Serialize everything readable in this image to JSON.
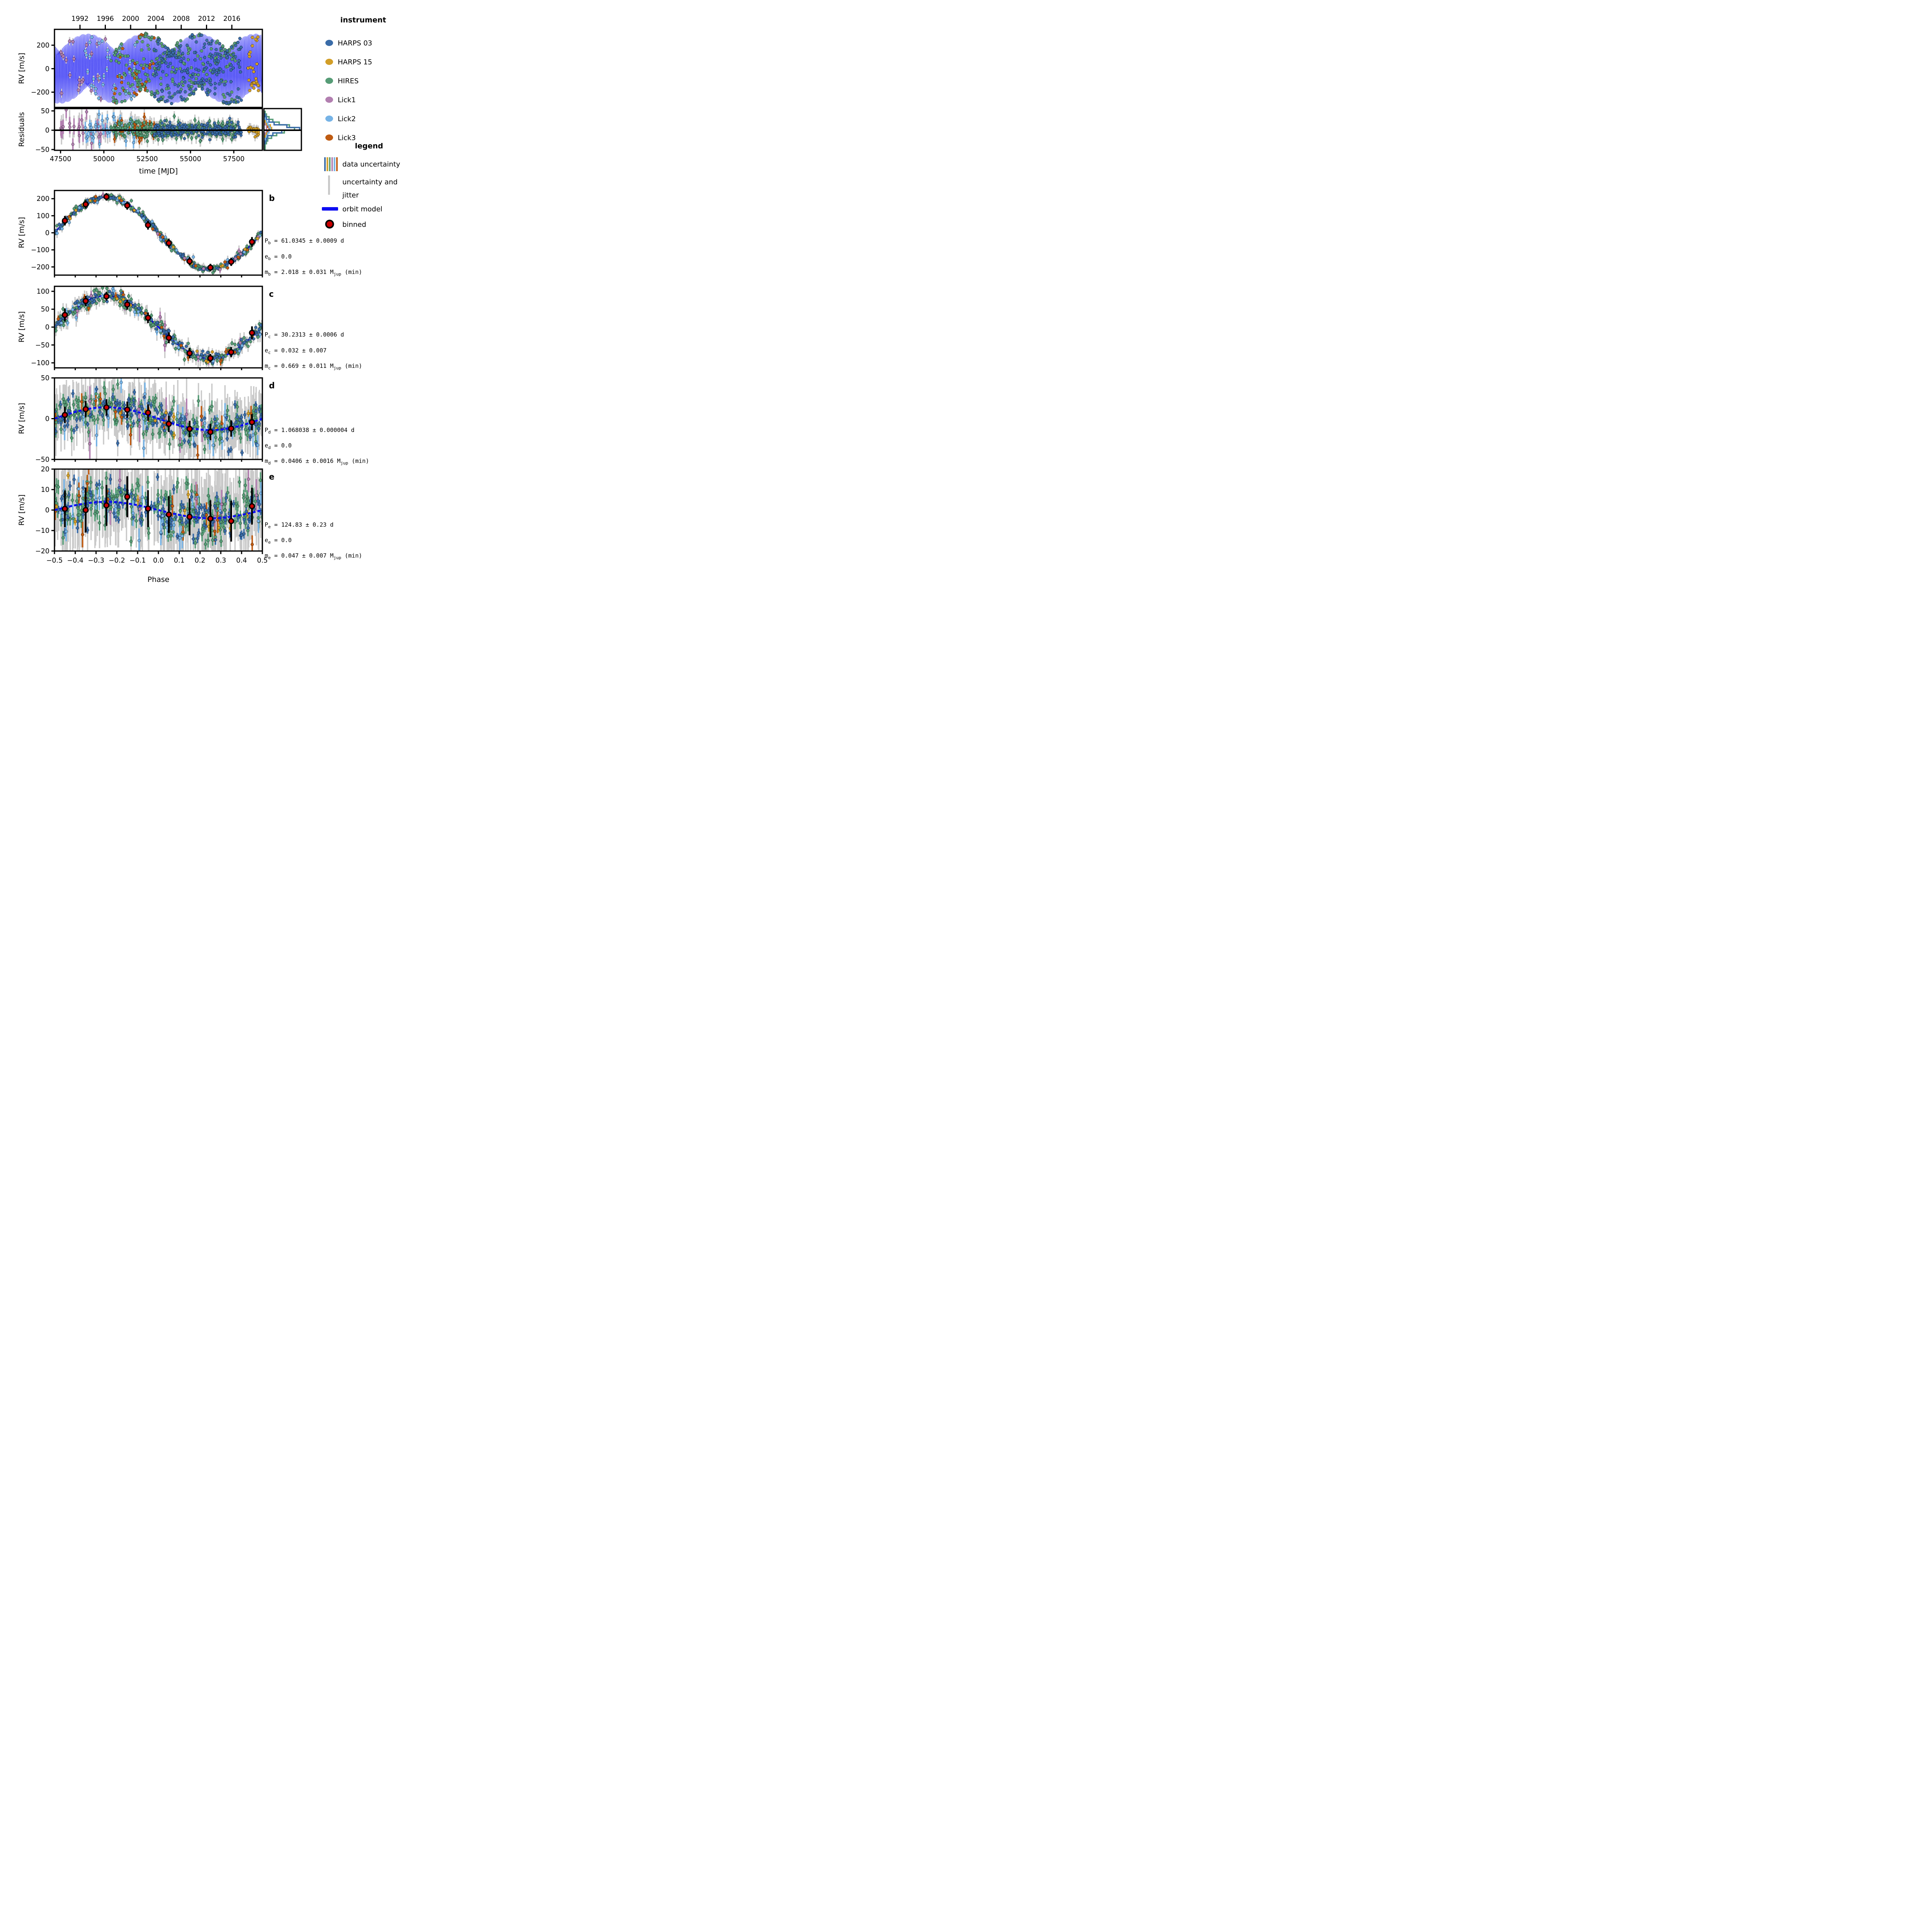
{
  "instrument_legend": {
    "title": "instrument",
    "items": [
      {
        "label": "HARPS 03",
        "color": "#3a6ca8"
      },
      {
        "label": "HARPS 15",
        "color": "#d29e27"
      },
      {
        "label": "HIRES",
        "color": "#569c76"
      },
      {
        "label": "Lick1",
        "color": "#b27fb0"
      },
      {
        "label": "Lick2",
        "color": "#76b3e6"
      },
      {
        "label": "Lick3",
        "color": "#bf5b12"
      }
    ]
  },
  "style_legend": {
    "title": "legend",
    "data_uncertainty_label": "data uncertainty",
    "jitter_label_line1": "uncertainty and",
    "jitter_label_line2": "jitter",
    "orbit_label": "orbit model",
    "binned_label": "binned",
    "jitter_color": "#c9c9c9",
    "orbit_color": "#0d0df2",
    "binned_fill": "#c90000"
  },
  "phase_axis": {
    "xlabel": "Phase",
    "ticks": [
      {
        "v": -0.5,
        "label": "−0.5"
      },
      {
        "v": -0.4,
        "label": "−0.4"
      },
      {
        "v": -0.3,
        "label": "−0.3"
      },
      {
        "v": -0.2,
        "label": "−0.2"
      },
      {
        "v": -0.1,
        "label": "−0.1"
      },
      {
        "v": 0.0,
        "label": "0.0"
      },
      {
        "v": 0.1,
        "label": "0.1"
      },
      {
        "v": 0.2,
        "label": "0.2"
      },
      {
        "v": 0.3,
        "label": "0.3"
      },
      {
        "v": 0.4,
        "label": "0.4"
      },
      {
        "v": 0.5,
        "label": "0.5"
      }
    ]
  },
  "chart_data": [
    {
      "id": "timeseries",
      "type": "scatter",
      "ylabel": "RV [m/s]",
      "ylim": [
        -330,
        335
      ],
      "yticks": [
        {
          "v": 200,
          "label": "200"
        },
        {
          "v": 0,
          "label": "0"
        },
        {
          "v": -200,
          "label": "−200"
        }
      ],
      "xlim": [
        47150,
        59150
      ],
      "top_axis_years": [
        {
          "mjd": 48622,
          "label": "1992"
        },
        {
          "mjd": 50083,
          "label": "1996"
        },
        {
          "mjd": 51544,
          "label": "2000"
        },
        {
          "mjd": 53005,
          "label": "2004"
        },
        {
          "mjd": 54466,
          "label": "2008"
        },
        {
          "mjd": 55927,
          "label": "2012"
        },
        {
          "mjd": 57388,
          "label": "2016"
        }
      ],
      "model": {
        "tref": 47150,
        "components": [
          {
            "K": 211,
            "P": 61.0345,
            "phi": 0.0
          },
          {
            "K": 88,
            "P": 30.2313,
            "phi": 1.0
          }
        ]
      },
      "scatter": [
        {
          "instrument": "Lick1",
          "n": 22,
          "t0": 47350,
          "t1": 50100,
          "noise": 20,
          "err": 18,
          "jitter": 30
        },
        {
          "instrument": "Lick2",
          "n": 40,
          "t0": 48900,
          "t1": 51900,
          "noise": 14,
          "err": 12,
          "jitter": 22
        },
        {
          "instrument": "Lick3",
          "n": 40,
          "t0": 50600,
          "t1": 52950,
          "noise": 12,
          "err": 9,
          "jitter": 17
        },
        {
          "instrument": "HIRES",
          "n": 255,
          "t0": 50400,
          "t1": 57650,
          "noise": 10,
          "err": 6,
          "jitter": 13
        },
        {
          "instrument": "HARPS 03",
          "n": 200,
          "t0": 52900,
          "t1": 57950,
          "noise": 8,
          "err": 3,
          "jitter": 9
        },
        {
          "instrument": "HARPS 15",
          "n": 28,
          "t0": 58250,
          "t1": 58950,
          "noise": 8,
          "err": 3,
          "jitter": 9
        }
      ]
    },
    {
      "id": "residuals",
      "type": "scatter",
      "ylabel": "Residuals",
      "ylim": [
        -52,
        56
      ],
      "yticks": [
        {
          "v": 50,
          "label": "50"
        },
        {
          "v": 0,
          "label": "0"
        },
        {
          "v": -50,
          "label": "−50"
        }
      ],
      "xlabel": "time [MJD]",
      "xticks": [
        {
          "v": 47500,
          "label": "47500"
        },
        {
          "v": 50000,
          "label": "50000"
        },
        {
          "v": 52500,
          "label": "52500"
        },
        {
          "v": 55000,
          "label": "55000"
        },
        {
          "v": 57500,
          "label": "57500"
        }
      ],
      "zero_line": true,
      "scatter_sigma": {
        "Lick1": 24,
        "Lick2": 20,
        "Lick3": 16,
        "HIRES": 11,
        "HARPS 03": 9,
        "HARPS 15": 6
      },
      "histogram": {
        "bin_edges": [
          -49,
          -42,
          -35,
          -28,
          -21,
          -14,
          -7,
          0,
          7,
          14,
          21,
          28,
          35,
          42,
          49
        ],
        "series": [
          {
            "instrument": "Lick1",
            "counts": [
              0,
              0,
              1,
              1,
              1,
              1,
              2,
              2,
              2,
              1,
              1,
              1,
              0,
              0
            ]
          },
          {
            "instrument": "Lick3",
            "counts": [
              0,
              0,
              1,
              1,
              1,
              2,
              3,
              4,
              3,
              2,
              1,
              1,
              0,
              0
            ]
          },
          {
            "instrument": "HARPS 15",
            "counts": [
              0,
              0,
              0,
              0,
              1,
              2,
              4,
              6,
              5,
              2,
              1,
              0,
              0,
              0
            ]
          },
          {
            "instrument": "Lick2",
            "counts": [
              0,
              1,
              1,
              1,
              2,
              3,
              4,
              5,
              4,
              3,
              2,
              1,
              1,
              0
            ]
          },
          {
            "instrument": "HIRES",
            "counts": [
              1,
              1,
              2,
              3,
              6,
              10,
              16,
              24,
              20,
              12,
              7,
              4,
              2,
              1
            ]
          },
          {
            "instrument": "HARPS 03",
            "counts": [
              0,
              0,
              1,
              2,
              3,
              7,
              14,
              28,
              18,
              8,
              4,
              2,
              1,
              0
            ]
          }
        ]
      }
    },
    {
      "id": "phase_b",
      "type": "scatter",
      "letter": "b",
      "ylabel": "RV [m/s]",
      "ylim": [
        -248,
        248
      ],
      "yticks": [
        {
          "v": 200,
          "label": "200"
        },
        {
          "v": 100,
          "label": "100"
        },
        {
          "v": 0,
          "label": "0"
        },
        {
          "v": -100,
          "label": "−100"
        },
        {
          "v": -200,
          "label": "−200"
        }
      ],
      "model": {
        "K": 211,
        "dashed": false
      },
      "binned": {
        "x": [
          -0.45,
          -0.35,
          -0.25,
          -0.15,
          -0.05,
          0.05,
          0.15,
          0.25,
          0.35,
          0.45
        ],
        "y": [
          71,
          167,
          211,
          160,
          45,
          -60,
          -167,
          -204,
          -170,
          -53
        ],
        "yerr": [
          28,
          24,
          22,
          24,
          26,
          26,
          24,
          22,
          24,
          28
        ]
      },
      "annotations": [
        [
          {
            "t": "P"
          },
          {
            "t": "b",
            "sub": true
          },
          {
            "t": " = 61.0345 ± 0.0009 d"
          }
        ],
        [
          {
            "t": "e"
          },
          {
            "t": "b",
            "sub": true
          },
          {
            "t": " = 0.0"
          }
        ],
        [
          {
            "t": "m"
          },
          {
            "t": "b",
            "sub": true
          },
          {
            "t": " = 2.018 ± 0.031 M"
          },
          {
            "t": "jup",
            "sub": true
          },
          {
            "t": " (min)"
          }
        ]
      ],
      "scatter": [
        {
          "instrument": "HIRES",
          "n": 205,
          "noise": 11,
          "err": 5,
          "jitter": 14
        },
        {
          "instrument": "HARPS 03",
          "n": 150,
          "noise": 8,
          "err": 3,
          "jitter": 10
        },
        {
          "instrument": "Lick2",
          "n": 26,
          "noise": 14,
          "err": 11,
          "jitter": 20
        },
        {
          "instrument": "Lick3",
          "n": 16,
          "noise": 12,
          "err": 9,
          "jitter": 16
        },
        {
          "instrument": "Lick1",
          "n": 10,
          "noise": 18,
          "err": 16,
          "jitter": 28
        },
        {
          "instrument": "HARPS 15",
          "n": 12,
          "noise": 8,
          "err": 3,
          "jitter": 10
        }
      ]
    },
    {
      "id": "phase_c",
      "type": "scatter",
      "letter": "c",
      "ylabel": "RV [m/s]",
      "ylim": [
        -114,
        114
      ],
      "yticks": [
        {
          "v": 100,
          "label": "100"
        },
        {
          "v": 50,
          "label": "50"
        },
        {
          "v": 0,
          "label": "0"
        },
        {
          "v": -50,
          "label": "−50"
        },
        {
          "v": -100,
          "label": "−100"
        }
      ],
      "model": {
        "K": 88,
        "dashed": false
      },
      "binned": {
        "x": [
          -0.45,
          -0.35,
          -0.25,
          -0.15,
          -0.05,
          0.05,
          0.15,
          0.25,
          0.35,
          0.45
        ],
        "y": [
          34,
          73,
          86,
          63,
          26,
          -30,
          -73,
          -87,
          -70,
          -16
        ],
        "yerr": [
          18,
          14,
          12,
          14,
          15,
          15,
          14,
          12,
          14,
          18
        ]
      },
      "annotations": [
        [
          {
            "t": "P"
          },
          {
            "t": "c",
            "sub": true
          },
          {
            "t": " = 30.2313 ± 0.0006 d"
          }
        ],
        [
          {
            "t": "e"
          },
          {
            "t": "c",
            "sub": true
          },
          {
            "t": " = 0.032 ± 0.007"
          }
        ],
        [
          {
            "t": "m"
          },
          {
            "t": "c",
            "sub": true
          },
          {
            "t": " = 0.669 ± 0.011 M"
          },
          {
            "t": "jup",
            "sub": true
          },
          {
            "t": " (min)"
          }
        ]
      ],
      "scatter": [
        {
          "instrument": "HIRES",
          "n": 205,
          "noise": 10,
          "err": 5,
          "jitter": 13
        },
        {
          "instrument": "HARPS 03",
          "n": 150,
          "noise": 8,
          "err": 3,
          "jitter": 9
        },
        {
          "instrument": "Lick2",
          "n": 26,
          "noise": 13,
          "err": 10,
          "jitter": 19
        },
        {
          "instrument": "Lick3",
          "n": 16,
          "noise": 12,
          "err": 9,
          "jitter": 15
        },
        {
          "instrument": "Lick1",
          "n": 10,
          "noise": 16,
          "err": 14,
          "jitter": 26
        },
        {
          "instrument": "HARPS 15",
          "n": 12,
          "noise": 8,
          "err": 3,
          "jitter": 9
        }
      ]
    },
    {
      "id": "phase_d",
      "type": "scatter",
      "letter": "d",
      "ylabel": "RV [m/s]",
      "ylim": [
        -50,
        50
      ],
      "yticks": [
        {
          "v": 50,
          "label": "50"
        },
        {
          "v": 0,
          "label": "0"
        },
        {
          "v": -50,
          "label": "−50"
        }
      ],
      "model": {
        "K": 14,
        "dashed": true
      },
      "binned": {
        "x": [
          -0.45,
          -0.35,
          -0.25,
          -0.15,
          -0.05,
          0.05,
          0.15,
          0.25,
          0.35,
          0.45
        ],
        "y": [
          4.6,
          11.6,
          13.8,
          11.0,
          7.4,
          -6.4,
          -12.6,
          -16.3,
          -12.1,
          -4.3
        ],
        "yerr": [
          10,
          10,
          10,
          10,
          10,
          10,
          10,
          10,
          10,
          10
        ]
      },
      "annotations": [
        [
          {
            "t": "P"
          },
          {
            "t": "d",
            "sub": true
          },
          {
            "t": " = 1.068038 ± 0.000004 d"
          }
        ],
        [
          {
            "t": "e"
          },
          {
            "t": "d",
            "sub": true
          },
          {
            "t": " = 0.0"
          }
        ],
        [
          {
            "t": "m"
          },
          {
            "t": "d",
            "sub": true
          },
          {
            "t": " = 0.0406 ± 0.0016 M"
          },
          {
            "t": "jup",
            "sub": true
          },
          {
            "t": " (min)"
          }
        ]
      ],
      "scatter": [
        {
          "instrument": "HIRES",
          "n": 200,
          "noise": 13,
          "err": 6,
          "jitter": 22
        },
        {
          "instrument": "HARPS 03",
          "n": 150,
          "noise": 11,
          "err": 4,
          "jitter": 18
        },
        {
          "instrument": "Lick2",
          "n": 24,
          "noise": 16,
          "err": 12,
          "jitter": 30
        },
        {
          "instrument": "Lick3",
          "n": 14,
          "noise": 15,
          "err": 10,
          "jitter": 26
        },
        {
          "instrument": "Lick1",
          "n": 8,
          "noise": 18,
          "err": 15,
          "jitter": 34
        },
        {
          "instrument": "HARPS 15",
          "n": 10,
          "noise": 10,
          "err": 4,
          "jitter": 16
        }
      ]
    },
    {
      "id": "phase_e",
      "type": "scatter",
      "letter": "e",
      "ylabel": "RV [m/s]",
      "ylim": [
        -20,
        20
      ],
      "yticks": [
        {
          "v": 20,
          "label": "20"
        },
        {
          "v": 10,
          "label": "10"
        },
        {
          "v": 0,
          "label": "0"
        },
        {
          "v": -10,
          "label": "−10"
        },
        {
          "v": -20,
          "label": "−20"
        }
      ],
      "model": {
        "K": 4,
        "dashed": true
      },
      "binned": {
        "x": [
          -0.45,
          -0.35,
          -0.25,
          -0.15,
          -0.05,
          0.05,
          0.15,
          0.25,
          0.35,
          0.45
        ],
        "y": [
          0.6,
          0.0,
          2.3,
          6.5,
          0.7,
          -2.2,
          -3.3,
          -4.2,
          -5.4,
          1.9
        ],
        "yerr": [
          9,
          11,
          10,
          10,
          9,
          9,
          9,
          9,
          10,
          9
        ]
      },
      "annotations": [
        [
          {
            "t": "P"
          },
          {
            "t": "e",
            "sub": true
          },
          {
            "t": " = 124.83 ± 0.23 d"
          }
        ],
        [
          {
            "t": "e"
          },
          {
            "t": "e",
            "sub": true
          },
          {
            "t": " = 0.0"
          }
        ],
        [
          {
            "t": "m"
          },
          {
            "t": "e",
            "sub": true
          },
          {
            "t": " = 0.047 ± 0.007 M"
          },
          {
            "t": "jup",
            "sub": true
          },
          {
            "t": " (min)"
          }
        ]
      ],
      "scatter": [
        {
          "instrument": "HIRES",
          "n": 200,
          "noise": 7,
          "err": 3,
          "jitter": 13
        },
        {
          "instrument": "HARPS 03",
          "n": 150,
          "noise": 6,
          "err": 2,
          "jitter": 11
        },
        {
          "instrument": "Lick2",
          "n": 24,
          "noise": 8,
          "err": 5,
          "jitter": 16
        },
        {
          "instrument": "Lick3",
          "n": 14,
          "noise": 8,
          "err": 5,
          "jitter": 15
        },
        {
          "instrument": "Lick1",
          "n": 8,
          "noise": 9,
          "err": 7,
          "jitter": 18
        },
        {
          "instrument": "HARPS 15",
          "n": 10,
          "noise": 6,
          "err": 2,
          "jitter": 10
        }
      ]
    }
  ]
}
